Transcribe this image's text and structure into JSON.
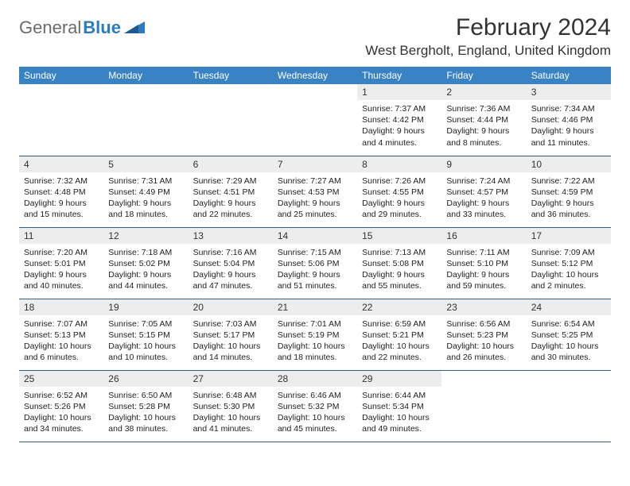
{
  "logo": {
    "general": "General",
    "blue": "Blue"
  },
  "title": "February 2024",
  "location": "West Bergholt, England, United Kingdom",
  "colors": {
    "header_bg": "#3983c5",
    "header_fg": "#ffffff",
    "daynum_bg": "#ededed",
    "border": "#355a7c",
    "logo_gray": "#6b6b6b",
    "logo_blue": "#2b7bbf"
  },
  "weekdays": [
    "Sunday",
    "Monday",
    "Tuesday",
    "Wednesday",
    "Thursday",
    "Friday",
    "Saturday"
  ],
  "first_weekday_index": 4,
  "days": [
    {
      "n": 1,
      "sunrise": "7:37 AM",
      "sunset": "4:42 PM",
      "dl": "9 hours and 4 minutes."
    },
    {
      "n": 2,
      "sunrise": "7:36 AM",
      "sunset": "4:44 PM",
      "dl": "9 hours and 8 minutes."
    },
    {
      "n": 3,
      "sunrise": "7:34 AM",
      "sunset": "4:46 PM",
      "dl": "9 hours and 11 minutes."
    },
    {
      "n": 4,
      "sunrise": "7:32 AM",
      "sunset": "4:48 PM",
      "dl": "9 hours and 15 minutes."
    },
    {
      "n": 5,
      "sunrise": "7:31 AM",
      "sunset": "4:49 PM",
      "dl": "9 hours and 18 minutes."
    },
    {
      "n": 6,
      "sunrise": "7:29 AM",
      "sunset": "4:51 PM",
      "dl": "9 hours and 22 minutes."
    },
    {
      "n": 7,
      "sunrise": "7:27 AM",
      "sunset": "4:53 PM",
      "dl": "9 hours and 25 minutes."
    },
    {
      "n": 8,
      "sunrise": "7:26 AM",
      "sunset": "4:55 PM",
      "dl": "9 hours and 29 minutes."
    },
    {
      "n": 9,
      "sunrise": "7:24 AM",
      "sunset": "4:57 PM",
      "dl": "9 hours and 33 minutes."
    },
    {
      "n": 10,
      "sunrise": "7:22 AM",
      "sunset": "4:59 PM",
      "dl": "9 hours and 36 minutes."
    },
    {
      "n": 11,
      "sunrise": "7:20 AM",
      "sunset": "5:01 PM",
      "dl": "9 hours and 40 minutes."
    },
    {
      "n": 12,
      "sunrise": "7:18 AM",
      "sunset": "5:02 PM",
      "dl": "9 hours and 44 minutes."
    },
    {
      "n": 13,
      "sunrise": "7:16 AM",
      "sunset": "5:04 PM",
      "dl": "9 hours and 47 minutes."
    },
    {
      "n": 14,
      "sunrise": "7:15 AM",
      "sunset": "5:06 PM",
      "dl": "9 hours and 51 minutes."
    },
    {
      "n": 15,
      "sunrise": "7:13 AM",
      "sunset": "5:08 PM",
      "dl": "9 hours and 55 minutes."
    },
    {
      "n": 16,
      "sunrise": "7:11 AM",
      "sunset": "5:10 PM",
      "dl": "9 hours and 59 minutes."
    },
    {
      "n": 17,
      "sunrise": "7:09 AM",
      "sunset": "5:12 PM",
      "dl": "10 hours and 2 minutes."
    },
    {
      "n": 18,
      "sunrise": "7:07 AM",
      "sunset": "5:13 PM",
      "dl": "10 hours and 6 minutes."
    },
    {
      "n": 19,
      "sunrise": "7:05 AM",
      "sunset": "5:15 PM",
      "dl": "10 hours and 10 minutes."
    },
    {
      "n": 20,
      "sunrise": "7:03 AM",
      "sunset": "5:17 PM",
      "dl": "10 hours and 14 minutes."
    },
    {
      "n": 21,
      "sunrise": "7:01 AM",
      "sunset": "5:19 PM",
      "dl": "10 hours and 18 minutes."
    },
    {
      "n": 22,
      "sunrise": "6:59 AM",
      "sunset": "5:21 PM",
      "dl": "10 hours and 22 minutes."
    },
    {
      "n": 23,
      "sunrise": "6:56 AM",
      "sunset": "5:23 PM",
      "dl": "10 hours and 26 minutes."
    },
    {
      "n": 24,
      "sunrise": "6:54 AM",
      "sunset": "5:25 PM",
      "dl": "10 hours and 30 minutes."
    },
    {
      "n": 25,
      "sunrise": "6:52 AM",
      "sunset": "5:26 PM",
      "dl": "10 hours and 34 minutes."
    },
    {
      "n": 26,
      "sunrise": "6:50 AM",
      "sunset": "5:28 PM",
      "dl": "10 hours and 38 minutes."
    },
    {
      "n": 27,
      "sunrise": "6:48 AM",
      "sunset": "5:30 PM",
      "dl": "10 hours and 41 minutes."
    },
    {
      "n": 28,
      "sunrise": "6:46 AM",
      "sunset": "5:32 PM",
      "dl": "10 hours and 45 minutes."
    },
    {
      "n": 29,
      "sunrise": "6:44 AM",
      "sunset": "5:34 PM",
      "dl": "10 hours and 49 minutes."
    }
  ],
  "labels": {
    "sunrise": "Sunrise:",
    "sunset": "Sunset:",
    "daylight": "Daylight:"
  }
}
